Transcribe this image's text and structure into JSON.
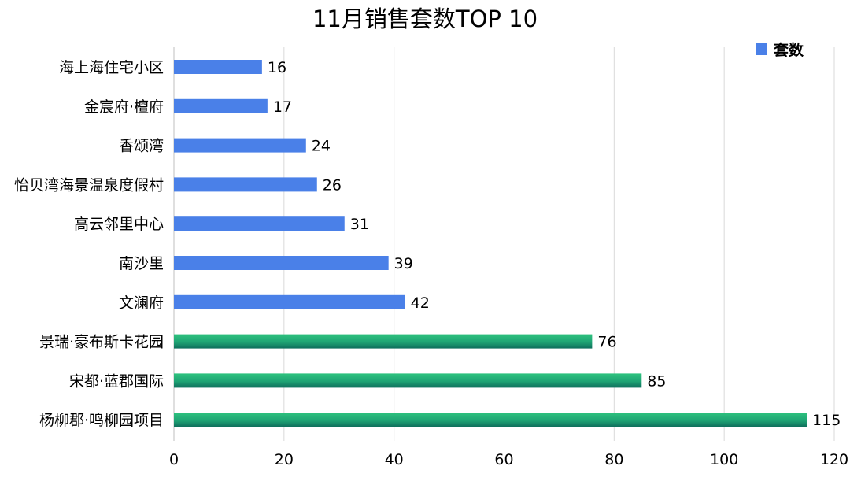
{
  "chart_data": {
    "type": "bar",
    "orientation": "horizontal",
    "title": "11月销售套数TOP 10",
    "xlabel": "",
    "ylabel": "",
    "xlim": [
      0,
      120
    ],
    "x_ticks": [
      0,
      20,
      40,
      60,
      80,
      100,
      120
    ],
    "grid": "vertical",
    "legend": {
      "position": "top-right",
      "entries": [
        "套数"
      ]
    },
    "series": [
      {
        "name": "套数",
        "categories": [
          "海上海住宅小区",
          "金宸府·檀府",
          "香颂湾",
          "怡贝湾海景温泉度假村",
          "高云邻里中心",
          "南沙里",
          "文澜府",
          "景瑞·豪布斯卡花园",
          "宋都·蓝郡国际",
          "杨柳郡·鸣柳园项目"
        ],
        "values": [
          16,
          17,
          24,
          26,
          31,
          39,
          42,
          76,
          85,
          115
        ],
        "highlight": [
          false,
          false,
          false,
          false,
          false,
          false,
          false,
          true,
          true,
          true
        ]
      }
    ],
    "colors": {
      "bar": "#4A80E8",
      "highlight_top": "#2EC27E",
      "highlight_bottom": "#0E6E5C",
      "grid": "#D9D9D9",
      "axis": "#BFBFBF",
      "text": "#000000"
    }
  }
}
